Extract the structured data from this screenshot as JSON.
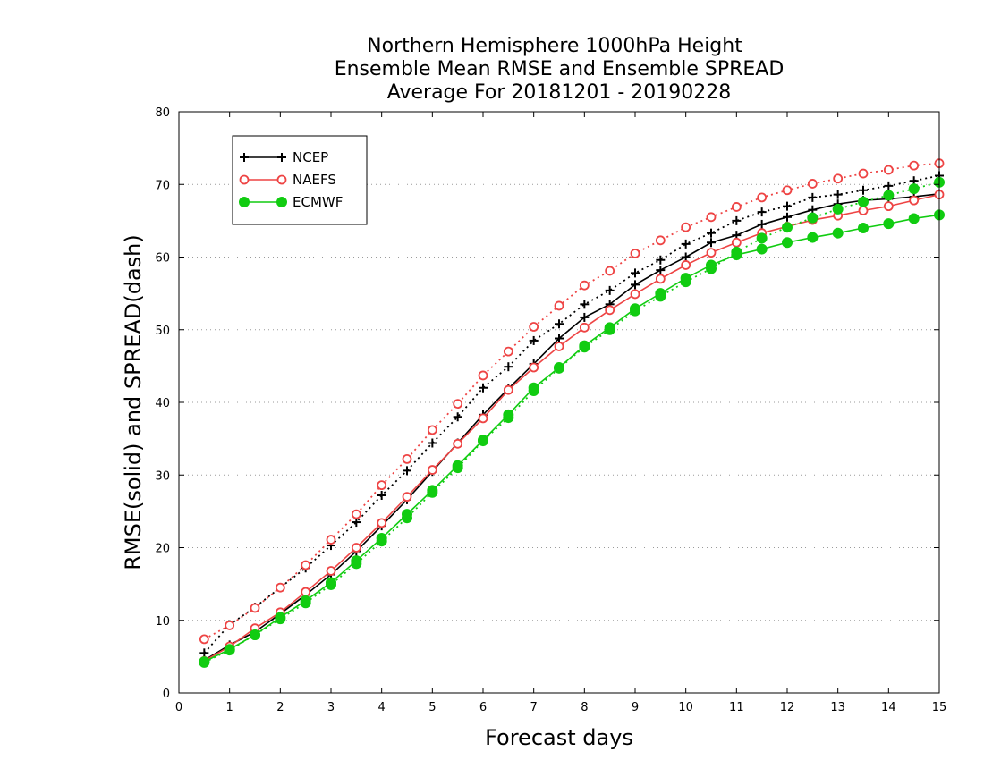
{
  "chart_data": {
    "type": "line",
    "title_lines": [
      "Northern Hemisphere 1000hPa Height",
      "Ensemble Mean RMSE and Ensemble SPREAD",
      "Average For 20181201 - 20190228"
    ],
    "xlabel": "Forecast days",
    "ylabel": "RMSE(solid) and SPREAD(dash)",
    "xlim": [
      0,
      15
    ],
    "ylim": [
      0,
      80
    ],
    "xticks": [
      0,
      1,
      2,
      3,
      4,
      5,
      6,
      7,
      8,
      9,
      10,
      11,
      12,
      13,
      14,
      15
    ],
    "yticks": [
      0,
      10,
      20,
      30,
      40,
      50,
      60,
      70,
      80
    ],
    "grid": "dotted horizontal",
    "legend_position": "top-left",
    "x": [
      0.5,
      1,
      1.5,
      2,
      2.5,
      3,
      3.5,
      4,
      4.5,
      5,
      5.5,
      6,
      6.5,
      7,
      7.5,
      8,
      8.5,
      9,
      9.5,
      10,
      10.5,
      11,
      11.5,
      12,
      12.5,
      13,
      13.5,
      14,
      14.5,
      15
    ],
    "series": [
      {
        "name": "NCEP",
        "color": "#000000",
        "marker": "plus",
        "rmse": [
          4.5,
          6.6,
          8.4,
          10.9,
          13.5,
          16.3,
          19.5,
          23.0,
          26.6,
          30.5,
          34.4,
          38.3,
          41.9,
          45.3,
          48.8,
          51.7,
          53.5,
          56.2,
          58.2,
          60.0,
          62.0,
          63.0,
          64.5,
          65.5,
          66.5,
          67.3,
          67.8,
          68.0,
          68.3,
          68.7
        ],
        "spread": [
          5.5,
          9.4,
          11.8,
          14.5,
          17.2,
          20.3,
          23.5,
          27.2,
          30.6,
          34.4,
          38.0,
          42.0,
          44.9,
          48.5,
          50.8,
          53.5,
          55.4,
          57.8,
          59.6,
          61.8,
          63.3,
          65.0,
          66.2,
          67.0,
          68.2,
          68.6,
          69.2,
          69.8,
          70.5,
          71.2
        ]
      },
      {
        "name": "NAEFS",
        "color": "#ee4444",
        "marker": "circle",
        "rmse": [
          4.4,
          6.4,
          8.9,
          11.1,
          13.9,
          16.8,
          20.0,
          23.4,
          27.0,
          30.7,
          34.3,
          37.8,
          41.7,
          44.8,
          47.7,
          50.3,
          52.7,
          54.9,
          57.0,
          58.9,
          60.6,
          62.0,
          63.3,
          64.2,
          65.1,
          65.7,
          66.4,
          67.0,
          67.8,
          68.6
        ],
        "spread": [
          7.4,
          9.3,
          11.7,
          14.5,
          17.6,
          21.1,
          24.6,
          28.6,
          32.2,
          36.2,
          39.8,
          43.7,
          47.0,
          50.4,
          53.3,
          56.1,
          58.1,
          60.5,
          62.3,
          64.1,
          65.5,
          66.9,
          68.2,
          69.2,
          70.1,
          70.8,
          71.5,
          72.0,
          72.6,
          72.9
        ]
      },
      {
        "name": "ECMWF",
        "color": "#11cc11",
        "marker": "filled-circle",
        "rmse": [
          4.3,
          6.0,
          8.0,
          10.4,
          12.7,
          15.2,
          18.2,
          21.3,
          24.6,
          27.9,
          31.3,
          34.8,
          38.3,
          42.0,
          44.8,
          47.8,
          50.3,
          52.9,
          55.0,
          57.1,
          58.9,
          60.3,
          61.1,
          62.0,
          62.7,
          63.3,
          64.0,
          64.6,
          65.3,
          65.8
        ],
        "spread": [
          4.2,
          5.9,
          8.0,
          10.2,
          12.4,
          14.9,
          17.8,
          20.9,
          24.1,
          27.6,
          31.0,
          34.7,
          37.9,
          41.6,
          44.7,
          47.6,
          50.0,
          52.6,
          54.6,
          56.6,
          58.4,
          60.7,
          62.6,
          64.1,
          65.4,
          66.6,
          67.6,
          68.5,
          69.4,
          70.3
        ]
      }
    ]
  }
}
